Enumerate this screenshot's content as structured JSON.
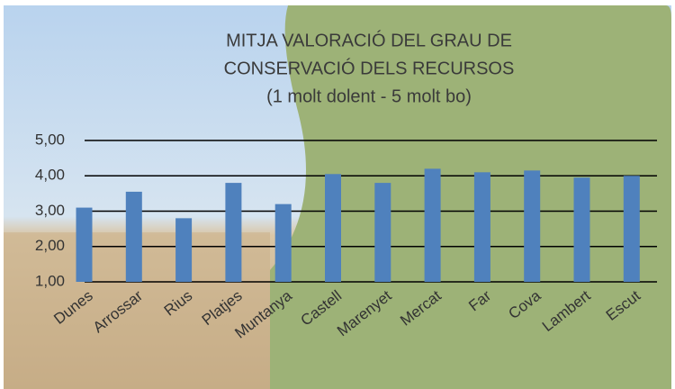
{
  "chart_data": {
    "type": "bar",
    "title": [
      "MITJA VALORACIÓ DEL GRAU DE",
      "CONSERVACIÓ DELS RECURSOS",
      "(1 molt  dolent - 5 molt bo)"
    ],
    "categories": [
      "Dunes",
      "Arrossar",
      "Rius",
      "Platjes",
      "Muntanya",
      "Castell",
      "Marenyet",
      "Mercat",
      "Far",
      "Cova",
      "Lambert",
      "Escut"
    ],
    "values": [
      3.1,
      3.55,
      2.8,
      3.8,
      3.2,
      4.05,
      3.8,
      4.2,
      4.1,
      4.15,
      3.95,
      4.0
    ],
    "color": "#4f81bd",
    "ylim": [
      1,
      5
    ],
    "yticks": [
      {
        "value": 1,
        "label": "1,00"
      },
      {
        "value": 2,
        "label": "2,00"
      },
      {
        "value": 3,
        "label": "3,00"
      },
      {
        "value": 4,
        "label": "4,00"
      },
      {
        "value": 5,
        "label": "5,00"
      }
    ],
    "grid": true
  }
}
